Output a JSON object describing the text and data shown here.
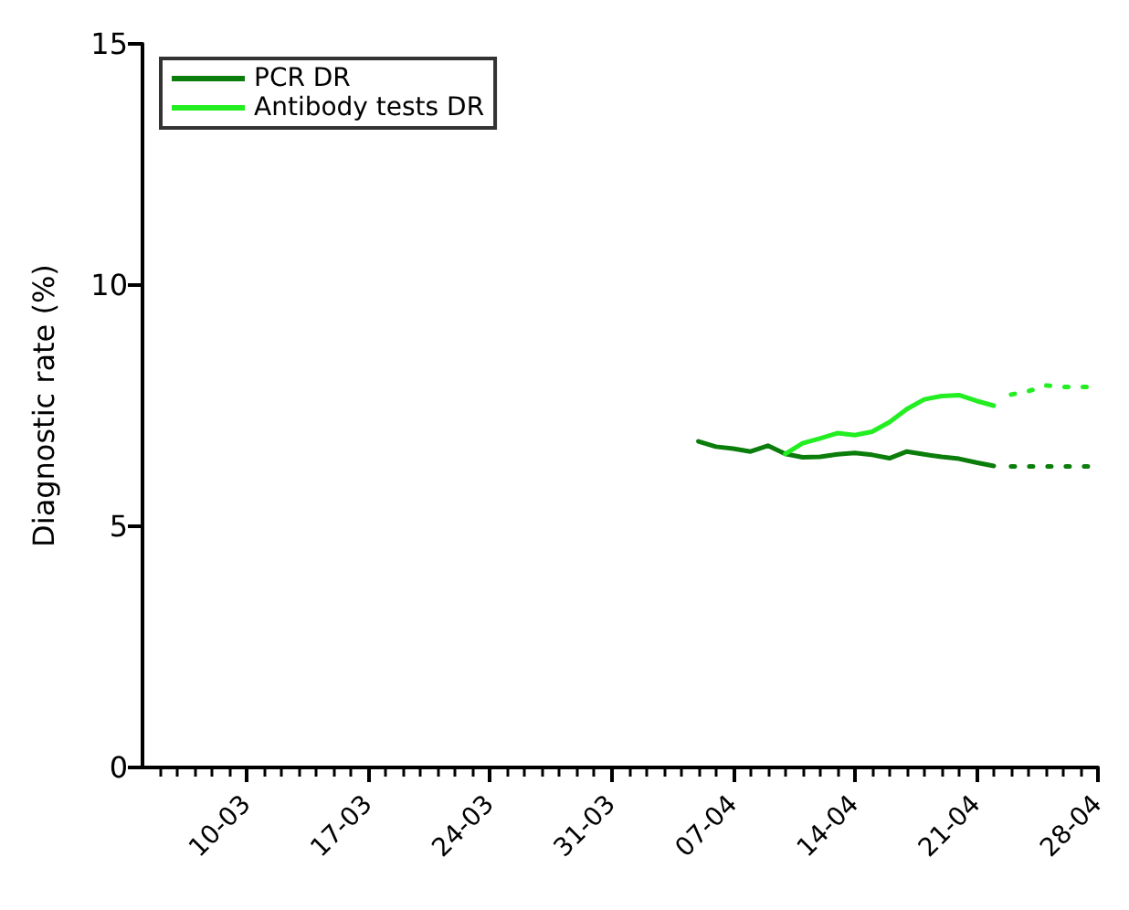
{
  "chart_data": {
    "type": "line",
    "ylabel": "Diagnostic rate (%)",
    "ylim": [
      0,
      15
    ],
    "yticks": [
      0,
      5,
      10,
      15
    ],
    "xlim": [
      "--03-04",
      "--04-28"
    ],
    "xticks": [
      {
        "value": "--03-05",
        "label": null
      },
      {
        "value": "--03-06",
        "label": null
      },
      {
        "value": "--03-07",
        "label": null
      },
      {
        "value": "--03-08",
        "label": null
      },
      {
        "value": "--03-09",
        "label": null
      },
      {
        "value": "--03-10",
        "label": "10-03"
      },
      {
        "value": "--03-11",
        "label": null
      },
      {
        "value": "--03-12",
        "label": null
      },
      {
        "value": "--03-13",
        "label": null
      },
      {
        "value": "--03-14",
        "label": null
      },
      {
        "value": "--03-15",
        "label": null
      },
      {
        "value": "--03-16",
        "label": null
      },
      {
        "value": "--03-17",
        "label": "17-03"
      },
      {
        "value": "--03-18",
        "label": null
      },
      {
        "value": "--03-19",
        "label": null
      },
      {
        "value": "--03-20",
        "label": null
      },
      {
        "value": "--03-21",
        "label": null
      },
      {
        "value": "--03-22",
        "label": null
      },
      {
        "value": "--03-23",
        "label": null
      },
      {
        "value": "--03-24",
        "label": "24-03"
      },
      {
        "value": "--03-25",
        "label": null
      },
      {
        "value": "--03-26",
        "label": null
      },
      {
        "value": "--03-27",
        "label": null
      },
      {
        "value": "--03-28",
        "label": null
      },
      {
        "value": "--03-29",
        "label": null
      },
      {
        "value": "--03-30",
        "label": null
      },
      {
        "value": "--03-31",
        "label": "31-03"
      },
      {
        "value": "--04-01",
        "label": null
      },
      {
        "value": "--04-02",
        "label": null
      },
      {
        "value": "--04-03",
        "label": null
      },
      {
        "value": "--04-04",
        "label": null
      },
      {
        "value": "--04-05",
        "label": null
      },
      {
        "value": "--04-06",
        "label": null
      },
      {
        "value": "--04-07",
        "label": "07-04"
      },
      {
        "value": "--04-08",
        "label": null
      },
      {
        "value": "--04-09",
        "label": null
      },
      {
        "value": "--04-10",
        "label": null
      },
      {
        "value": "--04-11",
        "label": null
      },
      {
        "value": "--04-12",
        "label": null
      },
      {
        "value": "--04-13",
        "label": null
      },
      {
        "value": "--04-14",
        "label": "14-04"
      },
      {
        "value": "--04-15",
        "label": null
      },
      {
        "value": "--04-16",
        "label": null
      },
      {
        "value": "--04-17",
        "label": null
      },
      {
        "value": "--04-18",
        "label": null
      },
      {
        "value": "--04-19",
        "label": null
      },
      {
        "value": "--04-20",
        "label": null
      },
      {
        "value": "--04-21",
        "label": "21-04"
      },
      {
        "value": "--04-22",
        "label": null
      },
      {
        "value": "--04-23",
        "label": null
      },
      {
        "value": "--04-24",
        "label": null
      },
      {
        "value": "--04-25",
        "label": null
      },
      {
        "value": "--04-26",
        "label": null
      },
      {
        "value": "--04-27",
        "label": null
      },
      {
        "value": "--04-28",
        "label": "28-04"
      }
    ],
    "grid": false,
    "legend": "top left",
    "marker": "none",
    "series": [
      {
        "name": "PCR DR",
        "color": "#0a7d0a",
        "line_style": "solid",
        "x": [
          "--04-05",
          "--04-06",
          "--04-07",
          "--04-08",
          "--04-09",
          "--04-10",
          "--04-11",
          "--04-12",
          "--04-13",
          "--04-14",
          "--04-15",
          "--04-16",
          "--04-17",
          "--04-18",
          "--04-19",
          "--04-20",
          "--04-21",
          "--04-22"
        ],
        "values": [
          6.76,
          6.65,
          6.61,
          6.55,
          6.67,
          6.5,
          6.43,
          6.44,
          6.49,
          6.52,
          6.48,
          6.41,
          6.55,
          6.49,
          6.44,
          6.4,
          6.32,
          6.25
        ]
      },
      {
        "name": "Antibody tests DR",
        "color": "#22ee22",
        "line_style": "solid",
        "x": [
          "--04-10",
          "--04-11",
          "--04-12",
          "--04-13",
          "--04-14",
          "--04-15",
          "--04-16",
          "--04-17",
          "--04-18",
          "--04-19",
          "--04-20",
          "--04-21",
          "--04-22"
        ],
        "values": [
          6.5,
          6.72,
          6.82,
          6.93,
          6.89,
          6.96,
          7.16,
          7.43,
          7.63,
          7.7,
          7.72,
          7.6,
          7.5
        ]
      },
      {
        "color": "#0a7d0a",
        "line_style": "dotted",
        "x": [
          "--04-23",
          "--04-24",
          "--04-25",
          "--04-26",
          "--04-27",
          "--04-28"
        ],
        "values": [
          6.24,
          6.24,
          6.24,
          6.24,
          6.24,
          6.24
        ]
      },
      {
        "color": "#22ee22",
        "line_style": "dotted",
        "x": [
          "--04-23",
          "--04-24",
          "--04-25",
          "--04-26",
          "--04-27",
          "--04-28"
        ],
        "values": [
          7.73,
          7.8,
          7.92,
          7.89,
          7.89,
          7.89
        ]
      }
    ]
  }
}
